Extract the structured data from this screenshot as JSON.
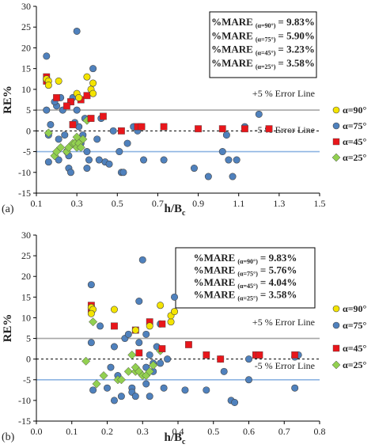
{
  "chart_data": [
    {
      "panel_label": "(a)",
      "type": "scatter",
      "xlabel": "h/B",
      "xlabel_sub": "c",
      "ylabel": "RE%",
      "xlim": [
        0.1,
        1.5
      ],
      "ylim": [
        -15,
        30
      ],
      "xticks": [
        "0.1",
        "0.3",
        "0.5",
        "0.7",
        "0.9",
        "1.1",
        "1.3",
        "1.5"
      ],
      "yticks": [
        "-15",
        "-10",
        "-5",
        "0",
        "5",
        "10",
        "15",
        "20",
        "25",
        "30"
      ],
      "grid": false,
      "legend_position": "right",
      "error_lines": [
        {
          "y": 5,
          "label": "+5 % Error Line"
        },
        {
          "y": 0,
          "label": ""
        },
        {
          "y": -5,
          "label": "-5 % Error Line"
        }
      ],
      "mare_box": [
        {
          "prefix": "%MARE",
          "sub": "(α=90°)",
          "value": "= 9.83%"
        },
        {
          "prefix": "%MARE",
          "sub": "(α=75°)",
          "value": "= 5.90%"
        },
        {
          "prefix": "%MARE",
          "sub": "(α=45°)",
          "value": "= 3.23%"
        },
        {
          "prefix": "%MARE",
          "sub": "(α=25°)",
          "value": "= 3.58%"
        }
      ],
      "series": [
        {
          "name": "α=90°",
          "color": "#f4e400",
          "marker": "circle",
          "points": [
            [
              0.15,
              12.5
            ],
            [
              0.16,
              12
            ],
            [
              0.21,
              12
            ],
            [
              0.3,
              9
            ],
            [
              0.31,
              8
            ],
            [
              0.35,
              13
            ],
            [
              0.37,
              10
            ],
            [
              0.38,
              11.5
            ],
            [
              0.38,
              9
            ],
            [
              0.16,
              11
            ]
          ]
        },
        {
          "name": "α=75°",
          "color": "#4f81bd",
          "marker": "circle",
          "points": [
            [
              0.15,
              18
            ],
            [
              0.15,
              5
            ],
            [
              0.16,
              -1
            ],
            [
              0.16,
              -7.5
            ],
            [
              0.2,
              6
            ],
            [
              0.21,
              -2
            ],
            [
              0.21,
              -7
            ],
            [
              0.22,
              8
            ],
            [
              0.23,
              5
            ],
            [
              0.25,
              -5
            ],
            [
              0.26,
              -6
            ],
            [
              0.26,
              -9
            ],
            [
              0.27,
              7
            ],
            [
              0.28,
              8
            ],
            [
              0.3,
              24
            ],
            [
              0.3,
              5
            ],
            [
              0.31,
              1
            ],
            [
              0.31,
              -2
            ],
            [
              0.32,
              -3
            ],
            [
              0.33,
              -1
            ],
            [
              0.34,
              3
            ],
            [
              0.35,
              -5
            ],
            [
              0.36,
              -7
            ],
            [
              0.38,
              15
            ],
            [
              0.4,
              -2
            ],
            [
              0.41,
              -7
            ],
            [
              0.44,
              -7.5
            ],
            [
              0.46,
              -8
            ],
            [
              0.48,
              0
            ],
            [
              0.51,
              -5
            ],
            [
              0.52,
              -10
            ],
            [
              0.53,
              -10
            ],
            [
              0.55,
              -3
            ],
            [
              0.6,
              0
            ],
            [
              0.62,
              1
            ],
            [
              0.63,
              -7
            ],
            [
              0.73,
              -7
            ],
            [
              0.88,
              -9
            ],
            [
              0.95,
              -11
            ],
            [
              1.02,
              -5
            ],
            [
              1.04,
              -1
            ],
            [
              1.05,
              -7
            ],
            [
              1.07,
              -11
            ],
            [
              1.09,
              -7
            ],
            [
              1.13,
              1
            ],
            [
              1.2,
              4
            ],
            [
              0.24,
              -1
            ],
            [
              0.29,
              2
            ],
            [
              0.17,
              1.5
            ],
            [
              0.19,
              7
            ],
            [
              0.27,
              -10
            ],
            [
              0.42,
              3
            ],
            [
              0.35,
              -9
            ],
            [
              0.58,
              1
            ]
          ]
        },
        {
          "name": "α=45°",
          "color": "#e8161b",
          "marker": "square",
          "points": [
            [
              0.15,
              12
            ],
            [
              0.15,
              13
            ],
            [
              0.2,
              8
            ],
            [
              0.27,
              7
            ],
            [
              0.28,
              1.5
            ],
            [
              0.32,
              7.5
            ],
            [
              0.35,
              8.5
            ],
            [
              0.43,
              3.5
            ],
            [
              0.52,
              0
            ],
            [
              0.6,
              1
            ],
            [
              0.62,
              1
            ],
            [
              0.73,
              1
            ],
            [
              0.9,
              0.5
            ],
            [
              1.02,
              0.5
            ],
            [
              1.13,
              0.5
            ],
            [
              1.25,
              0.5
            ],
            [
              0.25,
              6
            ],
            [
              0.37,
              3
            ]
          ]
        },
        {
          "name": "α=25°",
          "color": "#92d050",
          "marker": "diamond",
          "points": [
            [
              0.16,
              -0.5
            ],
            [
              0.19,
              -6
            ],
            [
              0.2,
              -5
            ],
            [
              0.22,
              -4
            ],
            [
              0.25,
              -5
            ],
            [
              0.26,
              -4
            ],
            [
              0.28,
              -3
            ],
            [
              0.29,
              -3
            ],
            [
              0.3,
              -4
            ],
            [
              0.31,
              -3
            ],
            [
              0.32,
              -4
            ],
            [
              0.33,
              -2
            ],
            [
              0.35,
              2.5
            ],
            [
              0.3,
              -1.5
            ]
          ]
        }
      ]
    },
    {
      "panel_label": "(b)",
      "type": "scatter",
      "xlabel": "h/B",
      "xlabel_sub": "c",
      "ylabel": "RE%",
      "xlim": [
        0.0,
        0.8
      ],
      "ylim": [
        -15,
        30
      ],
      "xticks": [
        "0.0",
        "0.1",
        "0.2",
        "0.3",
        "0.4",
        "0.5",
        "0.6",
        "0.7",
        "0.8"
      ],
      "yticks": [
        "-15",
        "-10",
        "-5",
        "0",
        "5",
        "10",
        "15",
        "20",
        "25",
        "30"
      ],
      "grid": false,
      "legend_position": "right",
      "error_lines": [
        {
          "y": 5,
          "label": "+5 % Error Line"
        },
        {
          "y": 0,
          "label": ""
        },
        {
          "y": -5,
          "label": "-5 % Error Line"
        }
      ],
      "mare_box": [
        {
          "prefix": "%MARE",
          "sub": "(α=90°)",
          "value": "= 9.83%"
        },
        {
          "prefix": "%MARE",
          "sub": "(α=75°)",
          "value": "= 5.76%"
        },
        {
          "prefix": "%MARE",
          "sub": "(α=45°)",
          "value": "= 4.04%"
        },
        {
          "prefix": "%MARE",
          "sub": "(α=25°)",
          "value": "= 3.58%"
        }
      ],
      "series": [
        {
          "name": "α=90°",
          "color": "#f4e400",
          "marker": "circle",
          "points": [
            [
              0.155,
              12.5
            ],
            [
              0.16,
              12
            ],
            [
              0.22,
              12
            ],
            [
              0.28,
              7
            ],
            [
              0.32,
              8
            ],
            [
              0.35,
              13
            ],
            [
              0.38,
              9
            ],
            [
              0.38,
              10.5
            ],
            [
              0.39,
              11.5
            ],
            [
              0.155,
              11
            ]
          ]
        },
        {
          "name": "α=75°",
          "color": "#4f81bd",
          "marker": "circle",
          "points": [
            [
              0.155,
              18
            ],
            [
              0.155,
              4
            ],
            [
              0.16,
              -7.5
            ],
            [
              0.18,
              8
            ],
            [
              0.2,
              -7
            ],
            [
              0.21,
              -2
            ],
            [
              0.22,
              3
            ],
            [
              0.22,
              -10
            ],
            [
              0.24,
              -9
            ],
            [
              0.25,
              5
            ],
            [
              0.26,
              6
            ],
            [
              0.27,
              -7
            ],
            [
              0.27,
              -8
            ],
            [
              0.28,
              -9
            ],
            [
              0.29,
              14
            ],
            [
              0.3,
              24
            ],
            [
              0.31,
              6
            ],
            [
              0.31,
              -2
            ],
            [
              0.31,
              -6
            ],
            [
              0.32,
              1
            ],
            [
              0.32,
              -9
            ],
            [
              0.33,
              -3
            ],
            [
              0.34,
              3
            ],
            [
              0.35,
              8.5
            ],
            [
              0.36,
              -7
            ],
            [
              0.37,
              0
            ],
            [
              0.39,
              15
            ],
            [
              0.42,
              -7.5
            ],
            [
              0.48,
              -7.5
            ],
            [
              0.52,
              0
            ],
            [
              0.53,
              -3
            ],
            [
              0.55,
              -10
            ],
            [
              0.56,
              -10.5
            ],
            [
              0.6,
              -5
            ],
            [
              0.6,
              0
            ],
            [
              0.62,
              1
            ],
            [
              0.73,
              0.5
            ],
            [
              0.73,
              -7
            ],
            [
              0.74,
              1
            ],
            [
              0.29,
              4
            ],
            [
              0.23,
              -4
            ],
            [
              0.33,
              -1
            ],
            [
              0.35,
              -1
            ]
          ]
        },
        {
          "name": "α=45°",
          "color": "#e8161b",
          "marker": "square",
          "points": [
            [
              0.155,
              13
            ],
            [
              0.155,
              12
            ],
            [
              0.22,
              8
            ],
            [
              0.28,
              7
            ],
            [
              0.29,
              1.5
            ],
            [
              0.32,
              9
            ],
            [
              0.355,
              8.5
            ],
            [
              0.355,
              2.5
            ],
            [
              0.43,
              3.5
            ],
            [
              0.48,
              1
            ],
            [
              0.52,
              0
            ],
            [
              0.62,
              1
            ],
            [
              0.63,
              1
            ],
            [
              0.73,
              1
            ]
          ]
        },
        {
          "name": "α=25°",
          "color": "#92d050",
          "marker": "diamond",
          "points": [
            [
              0.14,
              -0.5
            ],
            [
              0.16,
              9
            ],
            [
              0.17,
              -6
            ],
            [
              0.19,
              -4
            ],
            [
              0.23,
              -5
            ],
            [
              0.24,
              -5
            ],
            [
              0.26,
              -3
            ],
            [
              0.28,
              -3
            ],
            [
              0.28,
              -2
            ],
            [
              0.29,
              -3
            ],
            [
              0.3,
              -4
            ],
            [
              0.31,
              -4
            ],
            [
              0.32,
              -3
            ],
            [
              0.33,
              -1.5
            ],
            [
              0.35,
              2
            ],
            [
              0.27,
              1
            ]
          ]
        }
      ]
    }
  ]
}
